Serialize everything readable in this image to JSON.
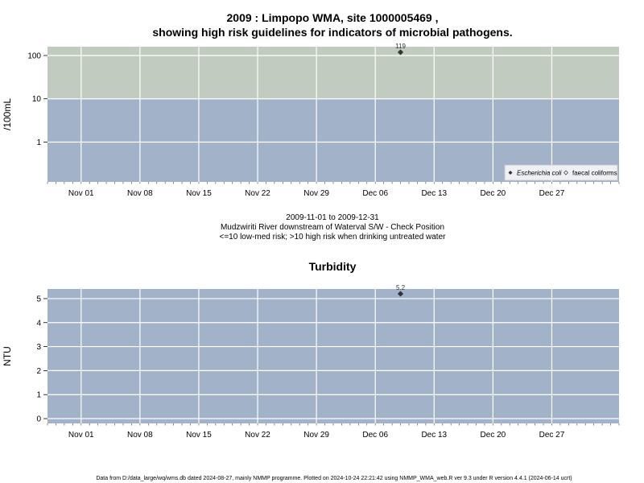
{
  "page": {
    "title_line1": "2009 : Limpopo WMA, site 1000005469 ,",
    "title_line2": "showing high risk guidelines for indicators of microbial pathogens.",
    "subtitle_line1": "2009-11-01 to 2009-12-31",
    "subtitle_line2": "Mudzwiriti River downstream of Waterval S/W - Check Position",
    "subtitle_line3": "<=10 low-med risk; >10 high risk when drinking untreated water",
    "footer": "Data from D:/data_large/wq/wms.db dated 2024-08-27, mainly NMMP programme. Plotted on 2024-10-24 22:21:42 using NMMP_WMA_web.R ver 9.3 under R version 4.4.1 (2024-06-14 ucrt)"
  },
  "colors": {
    "low_risk_band": "#a2b2c9",
    "high_risk_band": "#c2cbbf",
    "grid": "#ffffff",
    "marker": "#333333"
  },
  "chart_data": [
    {
      "type": "scatter",
      "title": "",
      "ylabel": "/100mL",
      "yscale": "log",
      "ylim": [
        0.12,
        160
      ],
      "yticks": [
        1,
        10,
        100
      ],
      "ytick_labels": [
        "1",
        "10",
        "100"
      ],
      "xlim": [
        "2009-10-28",
        "2010-01-04"
      ],
      "xticks": [
        "2009-11-01",
        "2009-11-08",
        "2009-11-15",
        "2009-11-22",
        "2009-11-29",
        "2009-12-06",
        "2009-12-13",
        "2009-12-20",
        "2009-12-27"
      ],
      "xtick_labels": [
        "Nov 01",
        "Nov 08",
        "Nov 15",
        "Nov 22",
        "Nov 29",
        "Dec 06",
        "Dec 13",
        "Dec 20",
        "Dec 27"
      ],
      "grid": true,
      "threshold": 10,
      "series": [
        {
          "name": "Escherichia coli",
          "marker": "filled-diamond",
          "points": [
            {
              "x": "2009-12-09",
              "y": 119,
              "label": "119"
            }
          ]
        },
        {
          "name": "faecal coliforms",
          "marker": "open-diamond",
          "points": []
        }
      ],
      "legend_position": "bottom-right"
    },
    {
      "type": "scatter",
      "title": "Turbidity",
      "ylabel": "NTU",
      "yscale": "linear",
      "ylim": [
        -0.2,
        5.4
      ],
      "yticks": [
        0,
        1,
        2,
        3,
        4,
        5
      ],
      "ytick_labels": [
        "0",
        "1",
        "2",
        "3",
        "4",
        "5"
      ],
      "xlim": [
        "2009-10-28",
        "2010-01-04"
      ],
      "xticks": [
        "2009-11-01",
        "2009-11-08",
        "2009-11-15",
        "2009-11-22",
        "2009-11-29",
        "2009-12-06",
        "2009-12-13",
        "2009-12-20",
        "2009-12-27"
      ],
      "xtick_labels": [
        "Nov 01",
        "Nov 08",
        "Nov 15",
        "Nov 22",
        "Nov 29",
        "Dec 06",
        "Dec 13",
        "Dec 20",
        "Dec 27"
      ],
      "grid": true,
      "series": [
        {
          "name": "",
          "marker": "filled-diamond",
          "points": [
            {
              "x": "2009-12-09",
              "y": 5.2,
              "label": "5.2"
            }
          ]
        }
      ]
    }
  ]
}
